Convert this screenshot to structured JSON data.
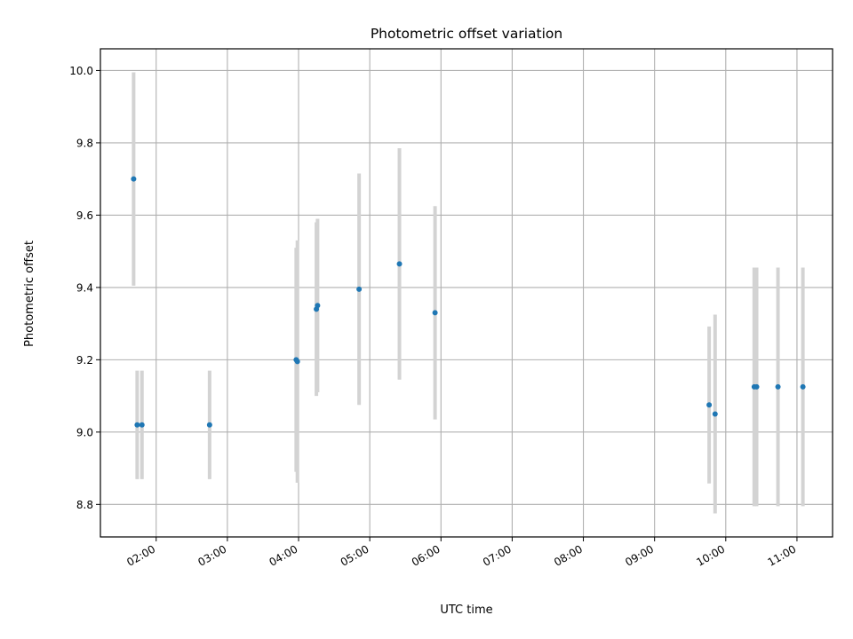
{
  "chart_data": {
    "type": "scatter",
    "title": "Photometric offset variation",
    "xlabel": "UTC time",
    "ylabel": "Photometric offset",
    "x_ticks": [
      "02:00",
      "03:00",
      "04:00",
      "05:00",
      "06:00",
      "07:00",
      "08:00",
      "09:00",
      "10:00",
      "11:00"
    ],
    "y_ticks": [
      "8.8",
      "9.0",
      "9.2",
      "9.4",
      "9.6",
      "9.8",
      "10.0"
    ],
    "xlim": [
      "01:13",
      "11:30"
    ],
    "ylim": [
      8.71,
      10.06
    ],
    "grid": true,
    "colors": {
      "point": "#1f77b4",
      "error_bar": "#d3d3d3",
      "grid": "#b0b0b0"
    },
    "series": [
      {
        "points": [
          {
            "x": "01:41",
            "y": 9.7,
            "yerr": 0.295
          },
          {
            "x": "01:44",
            "y": 9.02,
            "yerr": 0.15
          },
          {
            "x": "01:48",
            "y": 9.02,
            "yerr": 0.15
          },
          {
            "x": "02:45",
            "y": 9.02,
            "yerr": 0.15
          },
          {
            "x": "03:58",
            "y": 9.2,
            "yerr": 0.31
          },
          {
            "x": "03:59",
            "y": 9.195,
            "yerr": 0.335
          },
          {
            "x": "04:15",
            "y": 9.34,
            "yerr": 0.24
          },
          {
            "x": "04:16",
            "y": 9.35,
            "yerr": 0.24
          },
          {
            "x": "04:51",
            "y": 9.395,
            "yerr": 0.32
          },
          {
            "x": "05:25",
            "y": 9.465,
            "yerr": 0.32
          },
          {
            "x": "05:55",
            "y": 9.33,
            "yerr": 0.295
          },
          {
            "x": "09:46",
            "y": 9.075,
            "yerr": 0.217
          },
          {
            "x": "09:51",
            "y": 9.05,
            "yerr": 0.275
          },
          {
            "x": "10:24",
            "y": 9.125,
            "yerr": 0.33
          },
          {
            "x": "10:26",
            "y": 9.125,
            "yerr": 0.33
          },
          {
            "x": "10:44",
            "y": 9.125,
            "yerr": 0.33
          },
          {
            "x": "11:05",
            "y": 9.125,
            "yerr": 0.33
          }
        ]
      }
    ]
  }
}
